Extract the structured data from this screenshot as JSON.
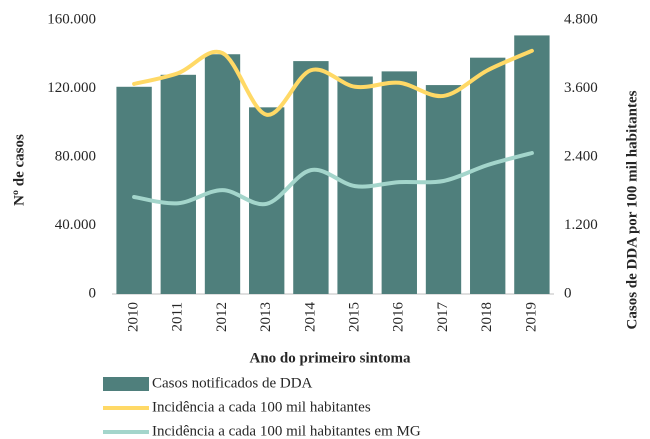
{
  "chart_data": {
    "type": "bar",
    "categories": [
      "2010",
      "2011",
      "2012",
      "2013",
      "2014",
      "2015",
      "2016",
      "2017",
      "2018",
      "2019"
    ],
    "series": [
      {
        "name": "Casos notificados de DDA",
        "type": "bar",
        "color": "#4f7f7c",
        "values": [
          121000,
          128000,
          140000,
          109000,
          136000,
          127000,
          130000,
          122000,
          138000,
          151000
        ]
      },
      {
        "name": "Incidência a cada 100 mil habitantes",
        "type": "line",
        "axis": "y2",
        "color": "#ffd966",
        "values": [
          3680,
          3870,
          4220,
          3140,
          3920,
          3630,
          3700,
          3470,
          3920,
          4260
        ]
      },
      {
        "name": "Incidência a cada 100 mil habitantes em MG",
        "type": "line",
        "axis": "y2",
        "color": "#a3d5cb",
        "values": [
          1700,
          1590,
          1820,
          1580,
          2170,
          1890,
          1960,
          1980,
          2260,
          2470
        ]
      }
    ],
    "ylabel": "Nº de casos",
    "xlabel": "Ano do primeiro sintoma",
    "y2label": "Casos de DDA por 100 mil habitantes",
    "ylim": [
      0,
      160000
    ],
    "yticks": [
      0,
      {
        "value": 40000,
        "label": "40.000"
      },
      {
        "value": 80000,
        "label": "80.000"
      },
      {
        "value": 120000,
        "label": "120.000"
      },
      {
        "value": 160000,
        "label": "160.000"
      }
    ],
    "y2lim": [
      0,
      4800
    ],
    "y2ticks": [
      0,
      {
        "value": 1200,
        "label": "1.200"
      },
      {
        "value": 2400,
        "label": "2.400"
      },
      {
        "value": 3600,
        "label": "3.600"
      },
      {
        "value": 4800,
        "label": "4.800"
      }
    ],
    "grid": false
  }
}
